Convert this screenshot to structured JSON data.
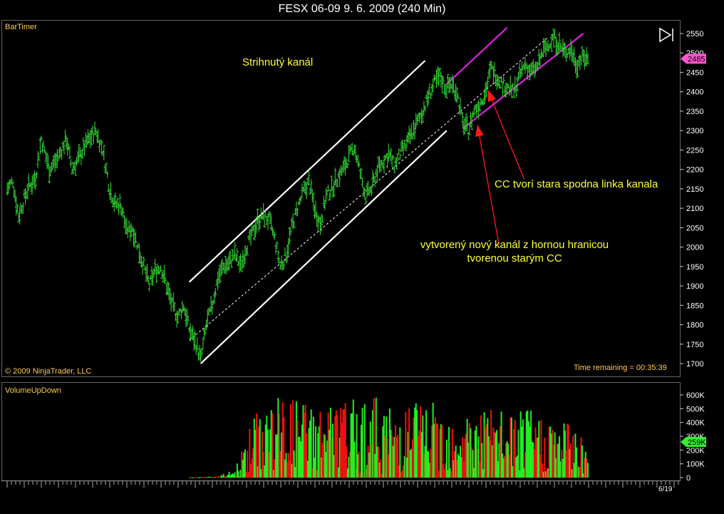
{
  "window": {
    "title": "FESX 06-09  9. 6. 2009 (240 Min)"
  },
  "panels": {
    "price": {
      "indicator": "BarTimer",
      "copyright": "© 2009 NinjaTrader, LLC",
      "time_remaining": "Time remaining = 00:35:39"
    },
    "volume": {
      "indicator": "VolumeUpDown"
    }
  },
  "annotations": {
    "channel_title": "Strihnutý kanál",
    "cc_note": "CC tvorí stara spodna linka kanala",
    "new_channel_line1": "vytvorený nový kanál  z hornou hranicou",
    "new_channel_line2": "tvorenou starým CC"
  },
  "x_axis": {
    "tick_label": "6/19"
  },
  "colors": {
    "price_bars": "#33dd33",
    "volume_up": "#22ee22",
    "volume_down": "#ee1111",
    "channel": "#ffffff",
    "new_channel": "#dd22dd",
    "arrows": "#ff1a1a",
    "annotation_text": "#ffff33",
    "price_marker": "#ff55cc",
    "volume_marker": "#33ee33"
  },
  "chart_data": [
    {
      "type": "ohlc",
      "title": "FESX 06-09  9. 6. 2009 (240 Min)",
      "y_ticks": [
        1700,
        1750,
        1800,
        1850,
        1900,
        1950,
        2000,
        2050,
        2100,
        2150,
        2200,
        2250,
        2300,
        2350,
        2400,
        2450,
        2500,
        2550
      ],
      "ylim": [
        1680,
        2570
      ],
      "last_price": {
        "label": "2485",
        "value": 2485
      },
      "price_path": [
        [
          0,
          2150
        ],
        [
          5,
          2170
        ],
        [
          10,
          2080
        ],
        [
          18,
          2150
        ],
        [
          25,
          2180
        ],
        [
          30,
          2280
        ],
        [
          37,
          2200
        ],
        [
          45,
          2230
        ],
        [
          52,
          2280
        ],
        [
          57,
          2200
        ],
        [
          63,
          2230
        ],
        [
          70,
          2270
        ],
        [
          78,
          2300
        ],
        [
          84,
          2250
        ],
        [
          90,
          2150
        ],
        [
          95,
          2110
        ],
        [
          100,
          2110
        ],
        [
          105,
          2040
        ],
        [
          110,
          2050
        ],
        [
          115,
          2000
        ],
        [
          120,
          1950
        ],
        [
          125,
          1900
        ],
        [
          130,
          1940
        ],
        [
          135,
          1950
        ],
        [
          140,
          1900
        ],
        [
          145,
          1850
        ],
        [
          150,
          1820
        ],
        [
          155,
          1850
        ],
        [
          160,
          1790
        ],
        [
          166,
          1750
        ],
        [
          170,
          1710
        ],
        [
          175,
          1800
        ],
        [
          180,
          1850
        ],
        [
          185,
          1920
        ],
        [
          190,
          1950
        ],
        [
          195,
          1960
        ],
        [
          200,
          1980
        ],
        [
          205,
          1950
        ],
        [
          210,
          2000
        ],
        [
          215,
          2030
        ],
        [
          220,
          2070
        ],
        [
          225,
          2080
        ],
        [
          230,
          2070
        ],
        [
          235,
          2020
        ],
        [
          240,
          1950
        ],
        [
          245,
          1980
        ],
        [
          250,
          2050
        ],
        [
          255,
          2100
        ],
        [
          260,
          2140
        ],
        [
          265,
          2170
        ],
        [
          270,
          2100
        ],
        [
          275,
          2060
        ],
        [
          280,
          2130
        ],
        [
          285,
          2150
        ],
        [
          290,
          2180
        ],
        [
          295,
          2200
        ],
        [
          300,
          2230
        ],
        [
          305,
          2260
        ],
        [
          310,
          2190
        ],
        [
          315,
          2130
        ],
        [
          320,
          2150
        ],
        [
          325,
          2200
        ],
        [
          330,
          2220
        ],
        [
          335,
          2240
        ],
        [
          340,
          2210
        ],
        [
          345,
          2240
        ],
        [
          350,
          2260
        ],
        [
          355,
          2290
        ],
        [
          360,
          2320
        ],
        [
          365,
          2350
        ],
        [
          370,
          2390
        ],
        [
          375,
          2420
        ],
        [
          380,
          2440
        ],
        [
          385,
          2410
        ],
        [
          390,
          2420
        ],
        [
          395,
          2400
        ],
        [
          400,
          2320
        ],
        [
          405,
          2300
        ],
        [
          410,
          2350
        ],
        [
          415,
          2370
        ],
        [
          420,
          2400
        ],
        [
          425,
          2460
        ],
        [
          430,
          2440
        ],
        [
          435,
          2420
        ],
        [
          440,
          2410
        ],
        [
          445,
          2400
        ],
        [
          450,
          2440
        ],
        [
          455,
          2470
        ],
        [
          460,
          2450
        ],
        [
          465,
          2460
        ],
        [
          470,
          2500
        ],
        [
          475,
          2520
        ],
        [
          480,
          2540
        ],
        [
          485,
          2520
        ],
        [
          490,
          2500
        ],
        [
          495,
          2510
        ],
        [
          500,
          2470
        ],
        [
          505,
          2490
        ],
        [
          510,
          2485
        ]
      ],
      "channels": [
        {
          "name": "upper",
          "from": [
            160,
            1910
          ],
          "to": [
            367,
            2480
          ]
        },
        {
          "name": "middle",
          "from": [
            160,
            1760
          ],
          "to": [
            475,
            2540
          ]
        },
        {
          "name": "lower",
          "from": [
            170,
            1700
          ],
          "to": [
            386,
            2300
          ]
        },
        {
          "name": "new_upper",
          "from": [
            386,
            2420
          ],
          "to": [
            439,
            2565
          ]
        },
        {
          "name": "new_lower",
          "from": [
            400,
            2305
          ],
          "to": [
            506,
            2550
          ]
        }
      ],
      "arrow_targets": [
        {
          "from": [
            454,
            2175
          ],
          "to": [
            422,
            2405
          ]
        },
        {
          "from": [
            432,
            2005
          ],
          "to": [
            413,
            2315
          ]
        }
      ]
    },
    {
      "type": "bar",
      "title": "VolumeUpDown",
      "y_ticks": [
        "0",
        "100K",
        "200K",
        "300K",
        "400K",
        "500K",
        "600K"
      ],
      "ylim": [
        0,
        660
      ],
      "unit": "K",
      "last_value": {
        "label": "259K",
        "value": 259
      },
      "start_index": 160,
      "end_index": 510,
      "envelope": [
        [
          160,
          3
        ],
        [
          185,
          10
        ],
        [
          200,
          60
        ],
        [
          205,
          180
        ],
        [
          215,
          420
        ],
        [
          225,
          560
        ],
        [
          240,
          600
        ],
        [
          260,
          580
        ],
        [
          280,
          540
        ],
        [
          300,
          560
        ],
        [
          320,
          620
        ],
        [
          340,
          500
        ],
        [
          360,
          600
        ],
        [
          380,
          520
        ],
        [
          400,
          500
        ],
        [
          420,
          520
        ],
        [
          440,
          480
        ],
        [
          460,
          500
        ],
        [
          480,
          440
        ],
        [
          500,
          420
        ],
        [
          510,
          260
        ]
      ]
    }
  ]
}
